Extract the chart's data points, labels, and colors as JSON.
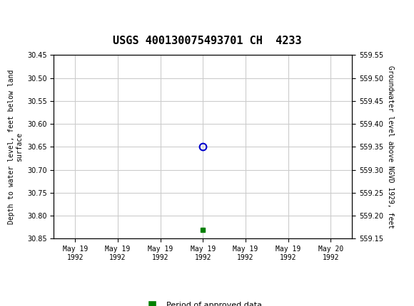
{
  "title": "USGS 400130075493701 CH  4233",
  "header_color": "#006644",
  "background_color": "#ffffff",
  "plot_bg_color": "#ffffff",
  "grid_color": "#cccccc",
  "left_ylabel": "Depth to water level, feet below land\nsurface",
  "right_ylabel": "Groundwater level above NGVD 1929, feet",
  "ylim_left": [
    30.45,
    30.85
  ],
  "ylim_right": [
    559.15,
    559.55
  ],
  "yticks_left": [
    30.45,
    30.5,
    30.55,
    30.6,
    30.65,
    30.7,
    30.75,
    30.8,
    30.85
  ],
  "yticks_right": [
    559.55,
    559.5,
    559.45,
    559.4,
    559.35,
    559.3,
    559.25,
    559.2,
    559.15
  ],
  "blue_marker_x": 3.0,
  "blue_marker_y": 30.65,
  "green_marker_x": 3.0,
  "green_marker_y": 30.83,
  "blue_color": "#0000cc",
  "green_color": "#008000",
  "legend_label": "Period of approved data",
  "xtick_labels": [
    "May 19\n1992",
    "May 19\n1992",
    "May 19\n1992",
    "May 19\n1992",
    "May 19\n1992",
    "May 19\n1992",
    "May 20\n1992"
  ],
  "xtick_positions": [
    0,
    1,
    2,
    3,
    4,
    5,
    6
  ],
  "xlim": [
    -0.5,
    6.5
  ]
}
